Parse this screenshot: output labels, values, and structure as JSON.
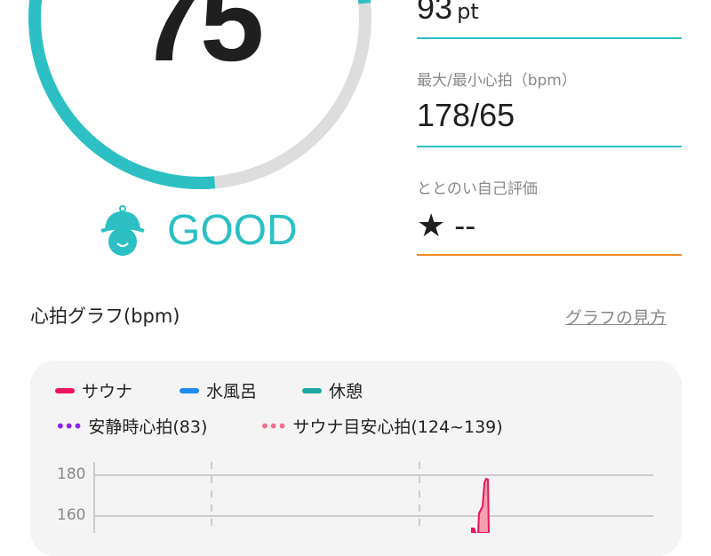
{
  "score": {
    "value": "75",
    "status": "GOOD",
    "fraction": 0.75,
    "color": "#2cc0c4"
  },
  "stats": [
    {
      "label": "",
      "value": "93",
      "unit": "pt"
    },
    {
      "label": "最大/最小心拍（bpm）",
      "value": "178/65"
    },
    {
      "label": "ととのい自己評価",
      "value": "★ --"
    }
  ],
  "graph": {
    "title": "心拍グラフ(bpm)",
    "help_link": "グラフの見方"
  },
  "chart_data": {
    "type": "line",
    "legend": [
      {
        "name": "サウナ",
        "color": "#f0145a",
        "style": "solid"
      },
      {
        "name": "水風呂",
        "color": "#1e8cf0",
        "style": "solid"
      },
      {
        "name": "休憩",
        "color": "#20a8a0",
        "style": "solid"
      },
      {
        "name": "安静時心拍(83)",
        "color": "#9020f0",
        "style": "dotted"
      },
      {
        "name": "サウナ目安心拍(124~139)",
        "color": "#f07090",
        "style": "dotted"
      }
    ],
    "y_ticks": [
      "180",
      "160"
    ],
    "grid": true,
    "series": [
      {
        "name": "サウナ",
        "peak": 178
      }
    ]
  }
}
